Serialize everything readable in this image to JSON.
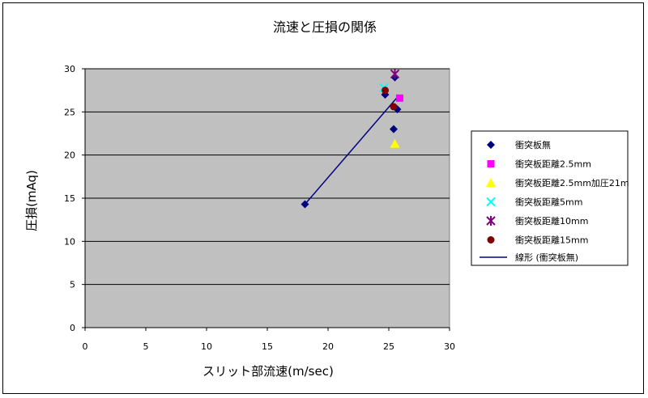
{
  "chart_data": {
    "type": "scatter",
    "title": "流速と圧損の関係",
    "xlabel": "スリット部流速(m/sec)",
    "ylabel": "圧損(mAq)",
    "xlim": [
      0,
      30
    ],
    "ylim": [
      0,
      30
    ],
    "x_ticks": [
      "0",
      "5",
      "10",
      "15",
      "20",
      "25",
      "30"
    ],
    "y_ticks": [
      "0",
      "5",
      "10",
      "15",
      "20",
      "25",
      "30"
    ],
    "grid": "horizontal",
    "legend_position": "right",
    "colors": {
      "plot_bg": "#c0c0c0",
      "grid": "#000000"
    },
    "series": [
      {
        "name": "衝突板無",
        "marker": "diamond",
        "color": "#000080",
        "x": [
          18.1,
          24.7,
          25.4,
          25.5,
          25.7
        ],
        "y": [
          14.3,
          27.0,
          23.0,
          29.0,
          25.3
        ]
      },
      {
        "name": "衝突板距離2.5mm",
        "marker": "square",
        "color": "#ff00ff",
        "x": [
          25.9
        ],
        "y": [
          26.6
        ]
      },
      {
        "name": "衝突板距離2.5mm加圧21m",
        "marker": "triangle",
        "color": "#ffff00",
        "x": [
          25.5
        ],
        "y": [
          21.3
        ]
      },
      {
        "name": "衝突板距離5mm",
        "marker": "x",
        "color": "#00ffff",
        "x": [
          24.6
        ],
        "y": [
          27.8
        ]
      },
      {
        "name": "衝突板距離10mm",
        "marker": "star",
        "color": "#800080",
        "x": [
          25.5
        ],
        "y": [
          29.4
        ]
      },
      {
        "name": "衝突板距離15mm",
        "marker": "circle",
        "color": "#800000",
        "x": [
          24.7,
          25.4
        ],
        "y": [
          27.5,
          25.6
        ]
      }
    ],
    "trendline": {
      "name": "線形 (衝突板無)",
      "color": "#000080",
      "x": [
        18.1,
        25.7
      ],
      "y": [
        14.3,
        26.7
      ]
    }
  }
}
